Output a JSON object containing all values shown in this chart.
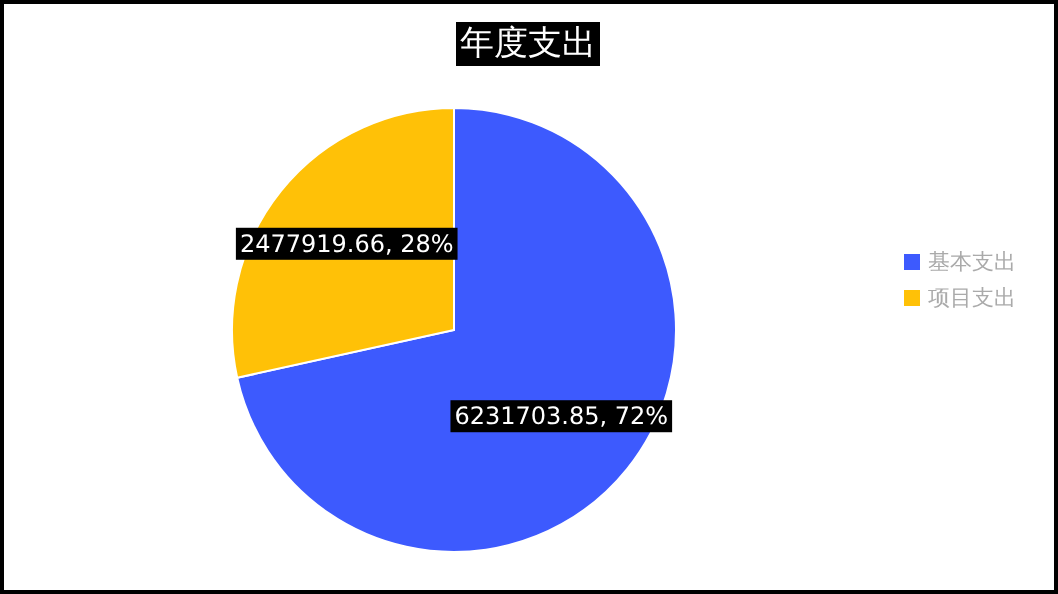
{
  "chart_data": {
    "type": "pie",
    "title": "年度支出",
    "categories": [
      "基本支出",
      "项目支出"
    ],
    "values": [
      6231703.85,
      2477919.66
    ],
    "colors": [
      "#3d5afe",
      "#ffc107"
    ],
    "value_labels": [
      "6231703.85, 72%",
      "2477919.66, 28%"
    ],
    "legend": "right"
  }
}
